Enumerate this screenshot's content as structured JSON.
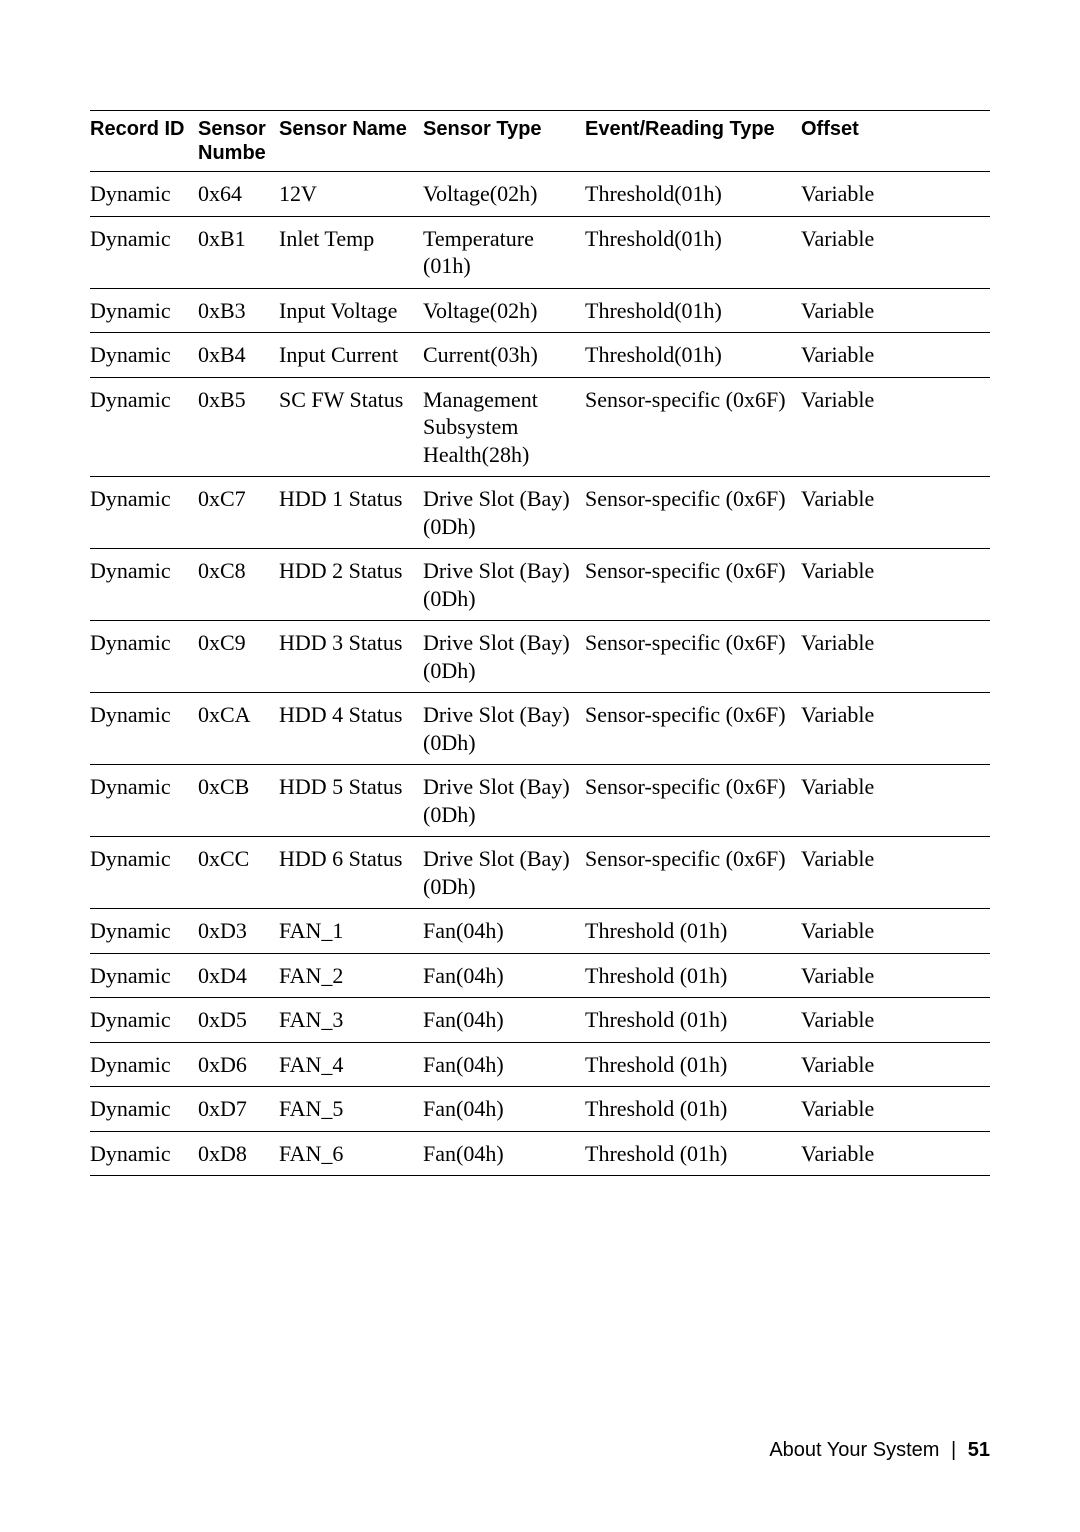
{
  "sensor_table": {
    "headers": {
      "record_id": "Record ID",
      "sensor_number": "Sensor Numbe",
      "sensor_name": "Sensor Name",
      "sensor_type": "Sensor Type",
      "event_reading_type": "Event/Reading Type",
      "offset": "Offset"
    },
    "rows": [
      {
        "record_id": "Dynamic",
        "sensor_number": "0x64",
        "sensor_name": "12V",
        "sensor_type": "Voltage(02h)",
        "event_reading_type": "Threshold(01h)",
        "offset": "Variable"
      },
      {
        "record_id": "Dynamic",
        "sensor_number": "0xB1",
        "sensor_name": "Inlet Temp",
        "sensor_type": "Temperature (01h)",
        "event_reading_type": "Threshold(01h)",
        "offset": "Variable"
      },
      {
        "record_id": "Dynamic",
        "sensor_number": "0xB3",
        "sensor_name": "Input Voltage",
        "sensor_type": "Voltage(02h)",
        "event_reading_type": "Threshold(01h)",
        "offset": "Variable"
      },
      {
        "record_id": "Dynamic",
        "sensor_number": "0xB4",
        "sensor_name": "Input Current",
        "sensor_type": "Current(03h)",
        "event_reading_type": "Threshold(01h)",
        "offset": "Variable"
      },
      {
        "record_id": "Dynamic",
        "sensor_number": "0xB5",
        "sensor_name": "SC FW Status",
        "sensor_type": "Management Subsystem Health(28h)",
        "event_reading_type": "Sensor-specific (0x6F)",
        "offset": "Variable"
      },
      {
        "record_id": "Dynamic",
        "sensor_number": "0xC7",
        "sensor_name": "HDD 1 Status",
        "sensor_type": "Drive Slot (Bay)(0Dh)",
        "event_reading_type": "Sensor-specific (0x6F)",
        "offset": "Variable"
      },
      {
        "record_id": "Dynamic",
        "sensor_number": "0xC8",
        "sensor_name": "HDD 2 Status",
        "sensor_type": "Drive Slot (Bay)(0Dh)",
        "event_reading_type": "Sensor-specific (0x6F)",
        "offset": "Variable"
      },
      {
        "record_id": "Dynamic",
        "sensor_number": "0xC9",
        "sensor_name": "HDD 3 Status",
        "sensor_type": "Drive Slot (Bay)(0Dh)",
        "event_reading_type": "Sensor-specific (0x6F)",
        "offset": "Variable"
      },
      {
        "record_id": "Dynamic",
        "sensor_number": "0xCA",
        "sensor_name": "HDD 4 Status",
        "sensor_type": "Drive Slot (Bay)(0Dh)",
        "event_reading_type": "Sensor-specific (0x6F)",
        "offset": "Variable"
      },
      {
        "record_id": "Dynamic",
        "sensor_number": "0xCB",
        "sensor_name": "HDD 5 Status",
        "sensor_type": "Drive Slot (Bay)(0Dh)",
        "event_reading_type": "Sensor-specific (0x6F)",
        "offset": "Variable"
      },
      {
        "record_id": "Dynamic",
        "sensor_number": "0xCC",
        "sensor_name": "HDD 6 Status",
        "sensor_type": "Drive Slot (Bay)(0Dh)",
        "event_reading_type": "Sensor-specific (0x6F)",
        "offset": "Variable"
      },
      {
        "record_id": "Dynamic",
        "sensor_number": "0xD3",
        "sensor_name": "FAN_1",
        "sensor_type": "Fan(04h)",
        "event_reading_type": "Threshold (01h)",
        "offset": "Variable"
      },
      {
        "record_id": "Dynamic",
        "sensor_number": "0xD4",
        "sensor_name": "FAN_2",
        "sensor_type": "Fan(04h)",
        "event_reading_type": "Threshold (01h)",
        "offset": "Variable"
      },
      {
        "record_id": "Dynamic",
        "sensor_number": "0xD5",
        "sensor_name": "FAN_3",
        "sensor_type": "Fan(04h)",
        "event_reading_type": "Threshold (01h)",
        "offset": "Variable"
      },
      {
        "record_id": "Dynamic",
        "sensor_number": "0xD6",
        "sensor_name": "FAN_4",
        "sensor_type": "Fan(04h)",
        "event_reading_type": "Threshold (01h)",
        "offset": "Variable"
      },
      {
        "record_id": "Dynamic",
        "sensor_number": "0xD7",
        "sensor_name": "FAN_5",
        "sensor_type": "Fan(04h)",
        "event_reading_type": "Threshold (01h)",
        "offset": "Variable"
      },
      {
        "record_id": "Dynamic",
        "sensor_number": "0xD8",
        "sensor_name": "FAN_6",
        "sensor_type": "Fan(04h)",
        "event_reading_type": "Threshold (01h)",
        "offset": "Variable"
      }
    ]
  },
  "footer": {
    "section": "About Your System",
    "divider": "|",
    "page_number": "51"
  }
}
